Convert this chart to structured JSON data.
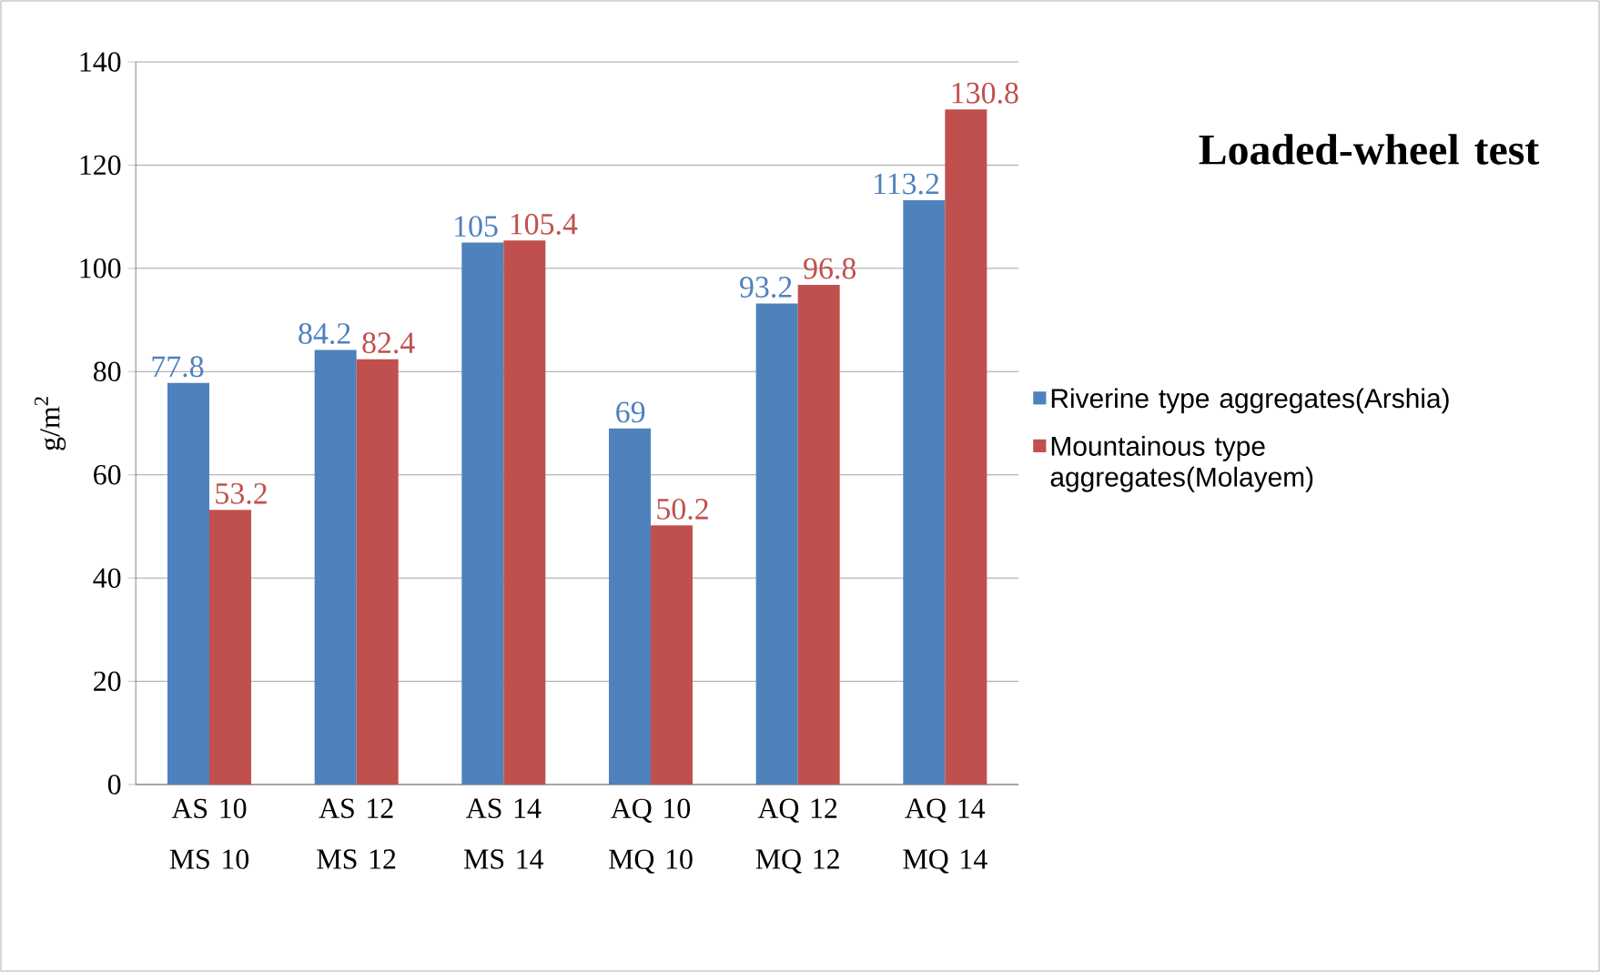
{
  "chart_data": {
    "type": "bar",
    "title": "Loaded-wheel test",
    "ylabel": "g/m$^{2}$",
    "categories": [
      "AS 10 MS 10",
      "AS 12 MS 12",
      "AS 14 MS 14",
      "AQ 10 MQ 10",
      "AQ 12 MQ 12",
      "AQ 14 MQ 14"
    ],
    "series": [
      {
        "name": "Riverine type aggregates(Arshia)",
        "color": "#4f81bd",
        "values": [
          77.8,
          84.2,
          105,
          69,
          93.2,
          113.2
        ]
      },
      {
        "name": "Mountainous type aggregates(Molayem)",
        "color": "#c0504d",
        "values": [
          53.2,
          82.4,
          105.4,
          50.2,
          96.8,
          130.8
        ]
      }
    ],
    "ylim": [
      0,
      140
    ],
    "yticks": [
      0,
      20,
      40,
      60,
      80,
      100,
      120,
      140
    ],
    "grid": "y",
    "legend": "right",
    "data_labels": true
  }
}
